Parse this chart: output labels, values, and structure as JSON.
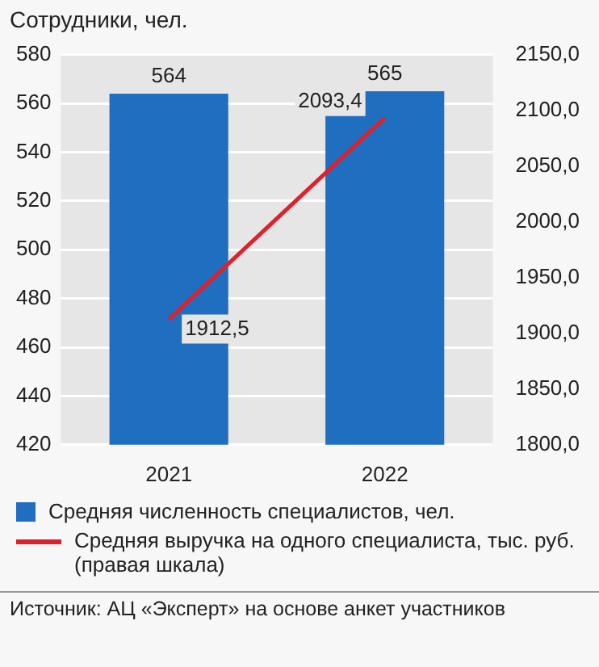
{
  "chart_data": {
    "type": "bar",
    "ylabel": "Сотрудники, чел.",
    "categories": [
      "2021",
      "2022"
    ],
    "series": [
      {
        "name": "Средняя численность специалистов, чел.",
        "color": "#1f6ec0",
        "values": [
          564,
          565
        ],
        "value_labels": [
          "564",
          "565"
        ]
      },
      {
        "name": "Средняя выручка на одного специалиста, тыс. руб. (правая шкала)",
        "type": "line",
        "axis": "y2",
        "color": "#e0202a",
        "values": [
          1912.5,
          2093.4
        ],
        "value_labels": [
          "1912,5",
          "2093,4"
        ]
      }
    ],
    "ylim": [
      420,
      580
    ],
    "yticks": [
      420,
      440,
      460,
      480,
      500,
      520,
      540,
      560,
      580
    ],
    "y2lim": [
      1800,
      2150
    ],
    "y2ticks": [
      {
        "value": 1800,
        "label": "1800,0"
      },
      {
        "value": 1850,
        "label": "1850,0"
      },
      {
        "value": 1900,
        "label": "1900,0"
      },
      {
        "value": 1950,
        "label": "1950,0"
      },
      {
        "value": 2000,
        "label": "2000,0"
      },
      {
        "value": 2050,
        "label": "2050,0"
      },
      {
        "value": 2100,
        "label": "2100,0"
      },
      {
        "value": 2150,
        "label": "2150,0"
      }
    ],
    "grid": "y",
    "legend": "bottom",
    "marker": "none",
    "annotations": [
      "Источник: АЦ «Эксперт» на основе анкет участников"
    ]
  }
}
